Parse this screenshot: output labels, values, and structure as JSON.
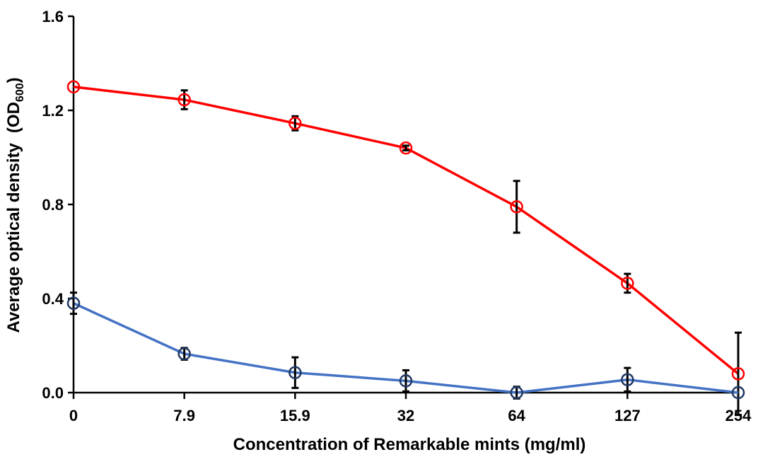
{
  "chart_data": {
    "type": "line",
    "categories": [
      "0",
      "7.9",
      "15.9",
      "32",
      "64",
      "127",
      "254"
    ],
    "xlabel": "Concentration of Remarkable mints (mg/ml)",
    "ylabel": "Average optical density",
    "ylabel_paren_main": "(OD",
    "ylabel_sub": "600",
    "ylabel_paren_close": ")",
    "ylim": [
      0,
      1.6
    ],
    "yticks": [
      "0.0",
      "0.4",
      "0.8",
      "1.2",
      "1.6"
    ],
    "grid": false,
    "legend": "none",
    "series": [
      {
        "color": "#ff0000",
        "marker": "open-circle",
        "values": [
          1.3,
          1.245,
          1.145,
          1.04,
          0.79,
          0.465,
          0.08
        ],
        "errors": [
          0.0,
          0.04,
          0.03,
          0.01,
          0.11,
          0.04,
          0.175
        ]
      },
      {
        "color": "#4472c4",
        "marker": "open-circle",
        "marker_color": "#203864",
        "values": [
          0.38,
          0.165,
          0.085,
          0.05,
          0.0,
          0.055,
          0.0
        ],
        "errors": [
          0.045,
          0.025,
          0.065,
          0.045,
          0.025,
          0.05,
          0.0
        ]
      }
    ]
  }
}
